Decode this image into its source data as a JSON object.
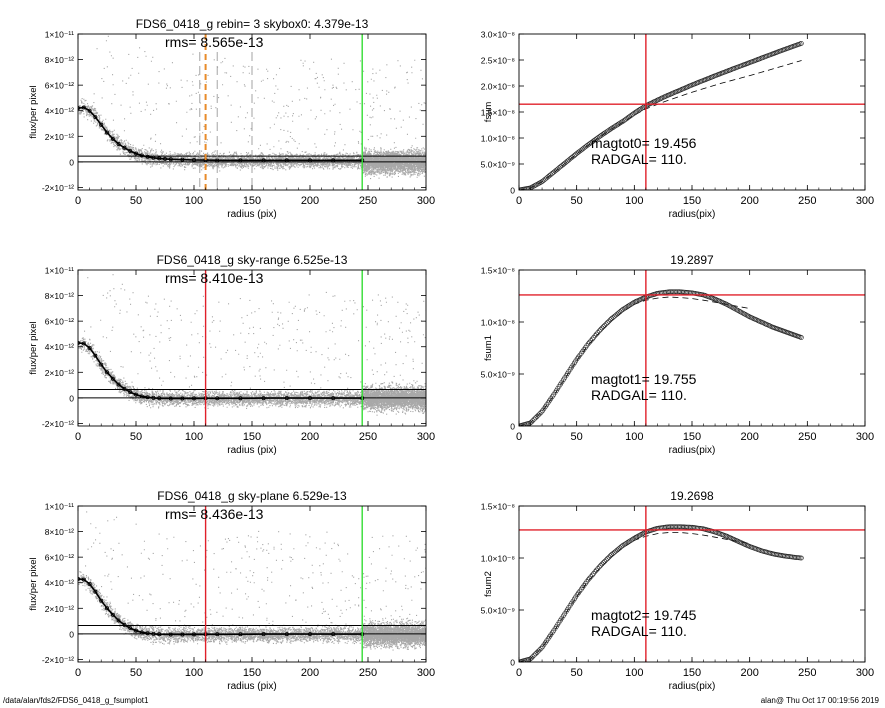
{
  "footer": {
    "left": "/data/alan/fds2/FDS6_0418_g_fsumplot1",
    "right": "alan@  Thu Oct 17 00:19:56 2019"
  },
  "colors": {
    "scatter": "#a8a8a8",
    "profile": "#000000",
    "red": "#e0202a",
    "green": "#33dd33",
    "orange": "#e88b2a",
    "dashed_gray": "#9a9a9a"
  },
  "chart_data": [
    {
      "id": "left-top",
      "type": "scatter",
      "title": "FDS6_0418_g rebin= 3    skybox0:  4.379e-13",
      "annotations": [
        "rms= 8.565e-13"
      ],
      "xlabel": "radius (pix)",
      "ylabel": "flux/per pixel",
      "xlim": [
        0,
        300
      ],
      "ylim": [
        -2.2e-12,
        1e-11
      ],
      "xticks": [
        0,
        50,
        100,
        150,
        200,
        250,
        300
      ],
      "xtick_labels": [
        "0",
        "50",
        "100",
        "150",
        "200",
        "250",
        "300"
      ],
      "yticks": [
        -2e-12,
        0,
        2e-12,
        4e-12,
        6e-12,
        8e-12,
        1e-11
      ],
      "ytick_labels": [
        "-2×10⁻¹²",
        "0",
        "2×10⁻¹²",
        "4×10⁻¹²",
        "6×10⁻¹²",
        "8×10⁻¹²",
        "1×10⁻¹¹"
      ],
      "profile": {
        "x": [
          0,
          5,
          10,
          15,
          20,
          25,
          30,
          35,
          40,
          45,
          50,
          55,
          60,
          65,
          70,
          75,
          80,
          90,
          100,
          110,
          120,
          140,
          160,
          180,
          200,
          220,
          245
        ],
        "y": [
          4.2e-12,
          4.25e-12,
          4e-12,
          3.5e-12,
          2.9e-12,
          2.3e-12,
          1.8e-12,
          1.4e-12,
          1.1e-12,
          8.5e-13,
          6.5e-13,
          5e-13,
          4e-13,
          3.2e-13,
          2.7e-13,
          2.3e-13,
          2e-13,
          1.8e-13,
          1.5e-13,
          1.4e-13,
          1.2e-13,
          1.2e-13,
          1.2e-13,
          1.2e-13,
          1.2e-13,
          1.2e-13,
          1.2e-13
        ]
      },
      "hlines": [
        4.5e-13,
        0
      ],
      "vlines": [
        {
          "x": 110,
          "color": "orange",
          "style": "dashed"
        },
        {
          "x": 105,
          "color": "gray",
          "style": "dashed"
        },
        {
          "x": 120,
          "color": "gray",
          "style": "dashed"
        },
        {
          "x": 150,
          "color": "gray",
          "style": "dashed"
        },
        {
          "x": 245,
          "color": "green",
          "style": "solid"
        }
      ],
      "scatter_seed": 11
    },
    {
      "id": "right-top",
      "type": "scatter",
      "title": "",
      "annotations": [
        "magtot0=  19.456",
        "RADGAL=     110."
      ],
      "xlabel": "radius(pix)",
      "ylabel": "fsum",
      "xlim": [
        0,
        300
      ],
      "ylim": [
        0,
        3e-08
      ],
      "xticks": [
        0,
        50,
        100,
        150,
        200,
        250,
        300
      ],
      "xtick_labels": [
        "0",
        "50",
        "100",
        "150",
        "200",
        "250",
        "300"
      ],
      "yticks": [
        0,
        5e-09,
        1e-08,
        1.5e-08,
        2e-08,
        2.5e-08,
        3e-08
      ],
      "ytick_labels": [
        "0",
        "5.0×10⁻⁹",
        "1.0×10⁻⁸",
        "1.5×10⁻⁸",
        "2.0×10⁻⁸",
        "2.5×10⁻⁸",
        "3.0×10⁻⁸"
      ],
      "curve": {
        "x": [
          0,
          10,
          20,
          30,
          40,
          50,
          60,
          70,
          80,
          90,
          100,
          110,
          125,
          150,
          175,
          200,
          225,
          245
        ],
        "y": [
          0,
          4e-10,
          1.6e-09,
          3.4e-09,
          5.2e-09,
          7e-09,
          8.7e-09,
          1.03e-08,
          1.18e-08,
          1.32e-08,
          1.48e-08,
          1.62e-08,
          1.78e-08,
          2.02e-08,
          2.24e-08,
          2.45e-08,
          2.66e-08,
          2.82e-08
        ]
      },
      "dashed_curve": {
        "x": [
          0,
          10,
          20,
          30,
          40,
          50,
          60,
          70,
          80,
          90,
          100,
          110,
          125,
          150,
          175,
          200,
          225,
          245
        ],
        "y": [
          0,
          4e-10,
          1.6e-09,
          3.3e-09,
          5.1e-09,
          6.9e-09,
          8.6e-09,
          1.02e-08,
          1.17e-08,
          1.3e-08,
          1.44e-08,
          1.56e-08,
          1.69e-08,
          1.88e-08,
          2.05e-08,
          2.2e-08,
          2.36e-08,
          2.49e-08
        ]
      },
      "red_hline": 1.65e-08,
      "red_vline": 110
    },
    {
      "id": "left-middle",
      "type": "scatter",
      "title": "FDS6_0418_g sky-range  6.525e-13",
      "annotations": [
        "rms= 8.410e-13"
      ],
      "xlabel": "radius (pix)",
      "ylabel": "flux/per pixel",
      "xlim": [
        0,
        300
      ],
      "ylim": [
        -2.2e-12,
        1e-11
      ],
      "xticks": [
        0,
        50,
        100,
        150,
        200,
        250,
        300
      ],
      "xtick_labels": [
        "0",
        "50",
        "100",
        "150",
        "200",
        "250",
        "300"
      ],
      "yticks": [
        -2e-12,
        0,
        2e-12,
        4e-12,
        6e-12,
        8e-12,
        1e-11
      ],
      "ytick_labels": [
        "-2×10⁻¹²",
        "0",
        "2×10⁻¹²",
        "4×10⁻¹²",
        "6×10⁻¹²",
        "8×10⁻¹²",
        "1×10⁻¹¹"
      ],
      "profile": {
        "x": [
          0,
          5,
          10,
          15,
          20,
          25,
          30,
          35,
          40,
          45,
          50,
          55,
          60,
          65,
          70,
          80,
          90,
          100,
          110,
          120,
          140,
          160,
          180,
          200,
          220,
          245
        ],
        "y": [
          4.3e-12,
          4.25e-12,
          3.9e-12,
          3.3e-12,
          2.6e-12,
          2e-12,
          1.5e-12,
          1.05e-12,
          7e-13,
          4.5e-13,
          2.5e-13,
          1.2e-13,
          5e-14,
          0.0,
          -3e-14,
          -5e-14,
          -5e-14,
          -4e-14,
          -3e-14,
          -3e-14,
          -3e-14,
          -2e-14,
          -2e-14,
          -2e-14,
          -2e-14,
          -2e-14
        ]
      },
      "hlines": [
        6.5e-13,
        0
      ],
      "vlines": [
        {
          "x": 110,
          "color": "red",
          "style": "solid"
        },
        {
          "x": 245,
          "color": "green",
          "style": "solid"
        }
      ],
      "scatter_seed": 23
    },
    {
      "id": "right-middle",
      "type": "scatter",
      "title": "19.2897",
      "annotations": [
        "magtot1=  19.755",
        "RADGAL=     110."
      ],
      "xlabel": "radius(pix)",
      "ylabel": "fsum1",
      "xlim": [
        0,
        300
      ],
      "ylim": [
        0,
        1.5e-08
      ],
      "xticks": [
        0,
        50,
        100,
        150,
        200,
        250,
        300
      ],
      "xtick_labels": [
        "0",
        "50",
        "100",
        "150",
        "200",
        "250",
        "300"
      ],
      "yticks": [
        0,
        5e-09,
        1e-08,
        1.5e-08
      ],
      "ytick_labels": [
        "0",
        "5.0×10⁻⁹",
        "1.0×10⁻⁸",
        "1.5×10⁻⁸"
      ],
      "curve": {
        "x": [
          0,
          10,
          20,
          30,
          40,
          50,
          60,
          70,
          80,
          90,
          100,
          110,
          120,
          130,
          140,
          150,
          160,
          170,
          180,
          190,
          200,
          210,
          220,
          230,
          240,
          245
        ],
        "y": [
          0,
          3e-10,
          1.4e-09,
          3e-09,
          4.7e-09,
          6.4e-09,
          7.9e-09,
          9.2e-09,
          1.03e-08,
          1.12e-08,
          1.19e-08,
          1.24e-08,
          1.275e-08,
          1.29e-08,
          1.29e-08,
          1.28e-08,
          1.26e-08,
          1.22e-08,
          1.17e-08,
          1.11e-08,
          1.05e-08,
          1e-08,
          9.5e-09,
          9.1e-09,
          8.7e-09,
          8.5e-09
        ]
      },
      "dashed_curve": {
        "x": [
          0,
          10,
          20,
          30,
          40,
          50,
          60,
          70,
          80,
          90,
          100,
          110,
          120,
          130,
          140,
          150,
          160,
          170,
          180,
          190,
          200
        ],
        "y": [
          0,
          3e-10,
          1.4e-09,
          2.9e-09,
          4.6e-09,
          6.3e-09,
          7.8e-09,
          9e-09,
          1.01e-08,
          1.1e-08,
          1.17e-08,
          1.21e-08,
          1.23e-08,
          1.24e-08,
          1.235e-08,
          1.225e-08,
          1.21e-08,
          1.19e-08,
          1.17e-08,
          1.15e-08,
          1.13e-08
        ]
      },
      "red_hline": 1.26e-08,
      "red_vline": 110
    },
    {
      "id": "left-bottom",
      "type": "scatter",
      "title": "FDS6_0418_g sky-plane  6.529e-13",
      "annotations": [
        "rms= 8.436e-13"
      ],
      "xlabel": "radius (pix)",
      "ylabel": "flux/per pixel",
      "xlim": [
        0,
        300
      ],
      "ylim": [
        -2.2e-12,
        1e-11
      ],
      "xticks": [
        0,
        50,
        100,
        150,
        200,
        250,
        300
      ],
      "xtick_labels": [
        "0",
        "50",
        "100",
        "150",
        "200",
        "250",
        "300"
      ],
      "yticks": [
        -2e-12,
        0,
        2e-12,
        4e-12,
        6e-12,
        8e-12,
        1e-11
      ],
      "ytick_labels": [
        "-2×10⁻¹²",
        "0",
        "2×10⁻¹²",
        "4×10⁻¹²",
        "6×10⁻¹²",
        "8×10⁻¹²",
        "1×10⁻¹¹"
      ],
      "profile": {
        "x": [
          0,
          5,
          10,
          15,
          20,
          25,
          30,
          35,
          40,
          45,
          50,
          55,
          60,
          65,
          70,
          80,
          90,
          100,
          110,
          120,
          140,
          160,
          180,
          200,
          220,
          245
        ],
        "y": [
          4.3e-12,
          4.25e-12,
          3.9e-12,
          3.3e-12,
          2.6e-12,
          2e-12,
          1.5e-12,
          1.05e-12,
          7e-13,
          4.5e-13,
          2.5e-13,
          1.2e-13,
          5e-14,
          0.0,
          -3e-14,
          -5e-14,
          -5e-14,
          -4e-14,
          -3e-14,
          -3e-14,
          -3e-14,
          -2e-14,
          -2e-14,
          -2e-14,
          -2e-14,
          -2e-14
        ]
      },
      "hlines": [
        6.5e-13,
        0
      ],
      "vlines": [
        {
          "x": 110,
          "color": "red",
          "style": "solid"
        },
        {
          "x": 245,
          "color": "green",
          "style": "solid"
        }
      ],
      "scatter_seed": 37
    },
    {
      "id": "right-bottom",
      "type": "scatter",
      "title": "19.2698",
      "annotations": [
        "magtot2=  19.745",
        "RADGAL=     110."
      ],
      "xlabel": "radius(pix)",
      "ylabel": "fsum2",
      "xlim": [
        0,
        300
      ],
      "ylim": [
        0,
        1.5e-08
      ],
      "xticks": [
        0,
        50,
        100,
        150,
        200,
        250,
        300
      ],
      "xtick_labels": [
        "0",
        "50",
        "100",
        "150",
        "200",
        "250",
        "300"
      ],
      "yticks": [
        0,
        5e-09,
        1e-08,
        1.5e-08
      ],
      "ytick_labels": [
        "0",
        "5.0×10⁻⁹",
        "1.0×10⁻⁸",
        "1.5×10⁻⁸"
      ],
      "curve": {
        "x": [
          0,
          10,
          20,
          30,
          40,
          50,
          60,
          70,
          80,
          90,
          100,
          110,
          120,
          130,
          140,
          150,
          160,
          170,
          180,
          190,
          200,
          210,
          220,
          230,
          240,
          245
        ],
        "y": [
          0,
          3e-10,
          1.4e-09,
          3e-09,
          4.7e-09,
          6.4e-09,
          7.9e-09,
          9.2e-09,
          1.03e-08,
          1.12e-08,
          1.19e-08,
          1.25e-08,
          1.285e-08,
          1.3e-08,
          1.3e-08,
          1.295e-08,
          1.28e-08,
          1.25e-08,
          1.21e-08,
          1.16e-08,
          1.11e-08,
          1.07e-08,
          1.04e-08,
          1.02e-08,
          1.005e-08,
          1e-08
        ]
      },
      "dashed_curve": {
        "x": [
          0,
          10,
          20,
          30,
          40,
          50,
          60,
          70,
          80,
          90,
          100,
          110,
          120,
          130,
          140,
          150,
          160,
          170,
          180,
          190,
          200
        ],
        "y": [
          0,
          3e-10,
          1.4e-09,
          2.9e-09,
          4.6e-09,
          6.3e-09,
          7.8e-09,
          9e-09,
          1.01e-08,
          1.1e-08,
          1.17e-08,
          1.21e-08,
          1.235e-08,
          1.245e-08,
          1.245e-08,
          1.235e-08,
          1.22e-08,
          1.2e-08,
          1.18e-08,
          1.16e-08,
          1.14e-08
        ]
      },
      "red_hline": 1.27e-08,
      "red_vline": 110
    }
  ]
}
